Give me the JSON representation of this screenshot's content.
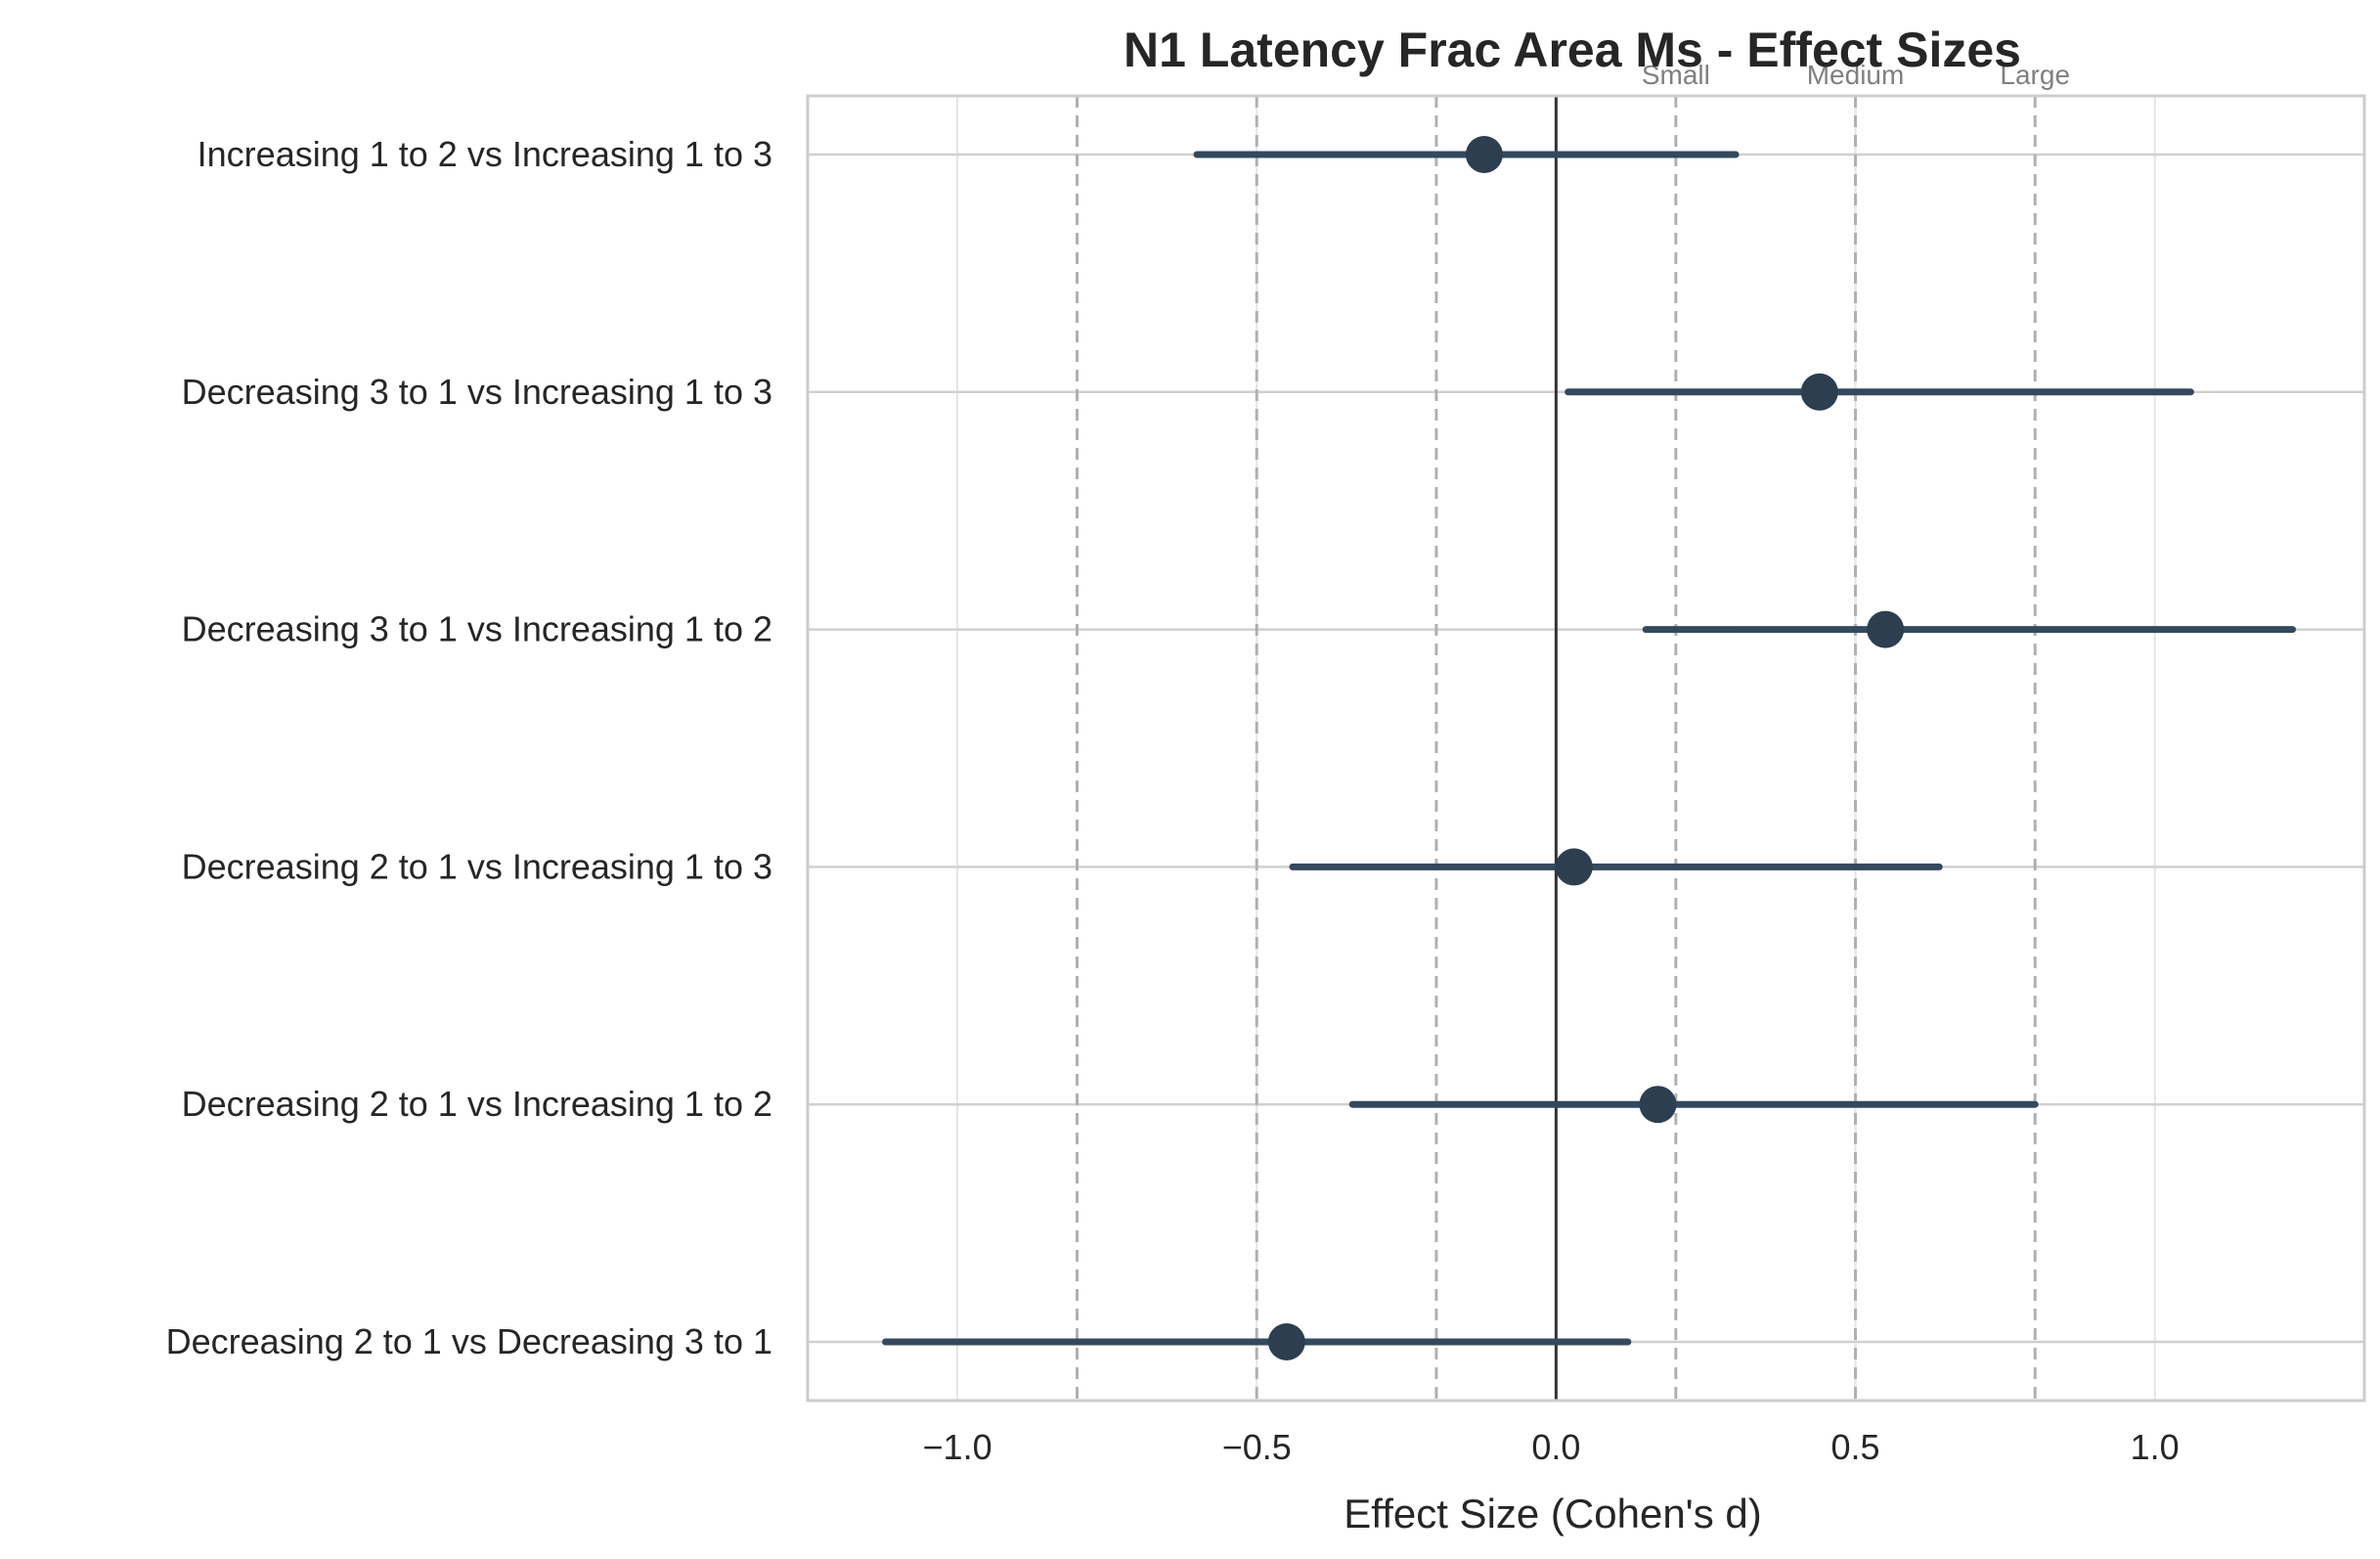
{
  "chart_data": {
    "type": "forest",
    "title": "N1 Latency Frac Area Ms - Effect Sizes",
    "xlabel": "Effect Size (Cohen's d)",
    "xlim": [
      -1.25,
      1.35
    ],
    "xticks": [
      -1.0,
      -0.5,
      0.0,
      0.5,
      1.0
    ],
    "xtick_labels": [
      "−1.0",
      "−0.5",
      "0.0",
      "0.5",
      "1.0"
    ],
    "grid": true,
    "reference_line": 0.0,
    "thresholds": [
      {
        "value": -0.8,
        "label": ""
      },
      {
        "value": -0.5,
        "label": ""
      },
      {
        "value": -0.2,
        "label": ""
      },
      {
        "value": 0.2,
        "label": "Small"
      },
      {
        "value": 0.5,
        "label": "Medium"
      },
      {
        "value": 0.8,
        "label": "Large"
      }
    ],
    "comparisons": [
      {
        "label": "Increasing 1 to 2 vs Increasing 1 to 3",
        "d": -0.12,
        "ci_low": -0.6,
        "ci_high": 0.3
      },
      {
        "label": "Decreasing 3 to 1 vs Increasing 1 to 3",
        "d": 0.44,
        "ci_low": 0.02,
        "ci_high": 1.06
      },
      {
        "label": "Decreasing 3 to 1 vs Increasing 1 to 2",
        "d": 0.55,
        "ci_low": 0.15,
        "ci_high": 1.23
      },
      {
        "label": "Decreasing 2 to 1 vs Increasing 1 to 3",
        "d": 0.03,
        "ci_low": -0.44,
        "ci_high": 0.64
      },
      {
        "label": "Decreasing 2 to 1 vs Increasing 1 to 2",
        "d": 0.17,
        "ci_low": -0.34,
        "ci_high": 0.8
      },
      {
        "label": "Decreasing 2 to 1 vs Decreasing 3 to 1",
        "d": -0.45,
        "ci_low": -1.12,
        "ci_high": 0.12
      }
    ],
    "colors": {
      "point": "#2c3e50",
      "ci": "#34495e",
      "threshold": "#b0b0b0",
      "zero": "#333333",
      "grid": "#e5e5e5",
      "frame": "#cccccc"
    }
  }
}
